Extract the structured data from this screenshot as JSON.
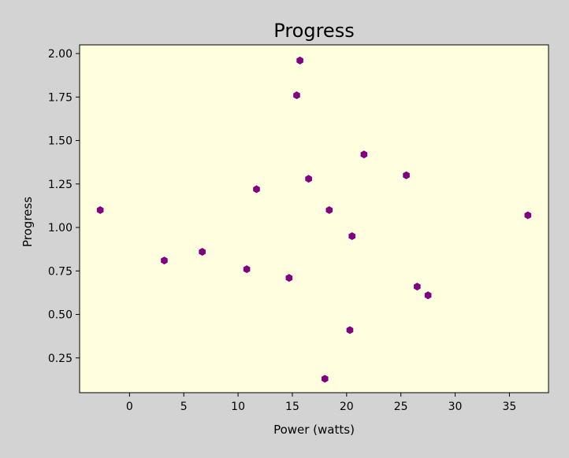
{
  "chart_data": {
    "type": "scatter",
    "title": "Progress",
    "xlabel": "Power (watts)",
    "ylabel": "Progress",
    "xlim": [
      -4.6,
      38.6
    ],
    "ylim": [
      0.05,
      2.05
    ],
    "xticks": [
      0,
      5,
      10,
      15,
      20,
      25,
      30,
      35
    ],
    "yticks": [
      0.25,
      0.5,
      0.75,
      1.0,
      1.25,
      1.5,
      1.75,
      2.0
    ],
    "xtick_labels": [
      "0",
      "5",
      "10",
      "15",
      "20",
      "25",
      "30",
      "35"
    ],
    "ytick_labels": [
      "0.25",
      "0.50",
      "0.75",
      "1.00",
      "1.25",
      "1.50",
      "1.75",
      "2.00"
    ],
    "grid": false,
    "legend": "none",
    "colors": {
      "figure_background": "#d3d3d3",
      "plot_background": "#ffffe0",
      "marker": "#800080"
    },
    "marker_shape": "hexagon",
    "points": [
      {
        "x": -2.7,
        "y": 1.1
      },
      {
        "x": 3.2,
        "y": 0.81
      },
      {
        "x": 6.7,
        "y": 0.86
      },
      {
        "x": 10.8,
        "y": 0.76
      },
      {
        "x": 11.7,
        "y": 1.22
      },
      {
        "x": 14.7,
        "y": 0.71
      },
      {
        "x": 15.4,
        "y": 1.76
      },
      {
        "x": 15.7,
        "y": 1.96
      },
      {
        "x": 16.5,
        "y": 1.28
      },
      {
        "x": 18.0,
        "y": 0.13
      },
      {
        "x": 18.4,
        "y": 1.1
      },
      {
        "x": 20.3,
        "y": 0.41
      },
      {
        "x": 20.5,
        "y": 0.95
      },
      {
        "x": 21.6,
        "y": 1.42
      },
      {
        "x": 25.5,
        "y": 1.3
      },
      {
        "x": 26.5,
        "y": 0.66
      },
      {
        "x": 27.5,
        "y": 0.61
      },
      {
        "x": 36.7,
        "y": 1.07
      }
    ]
  }
}
